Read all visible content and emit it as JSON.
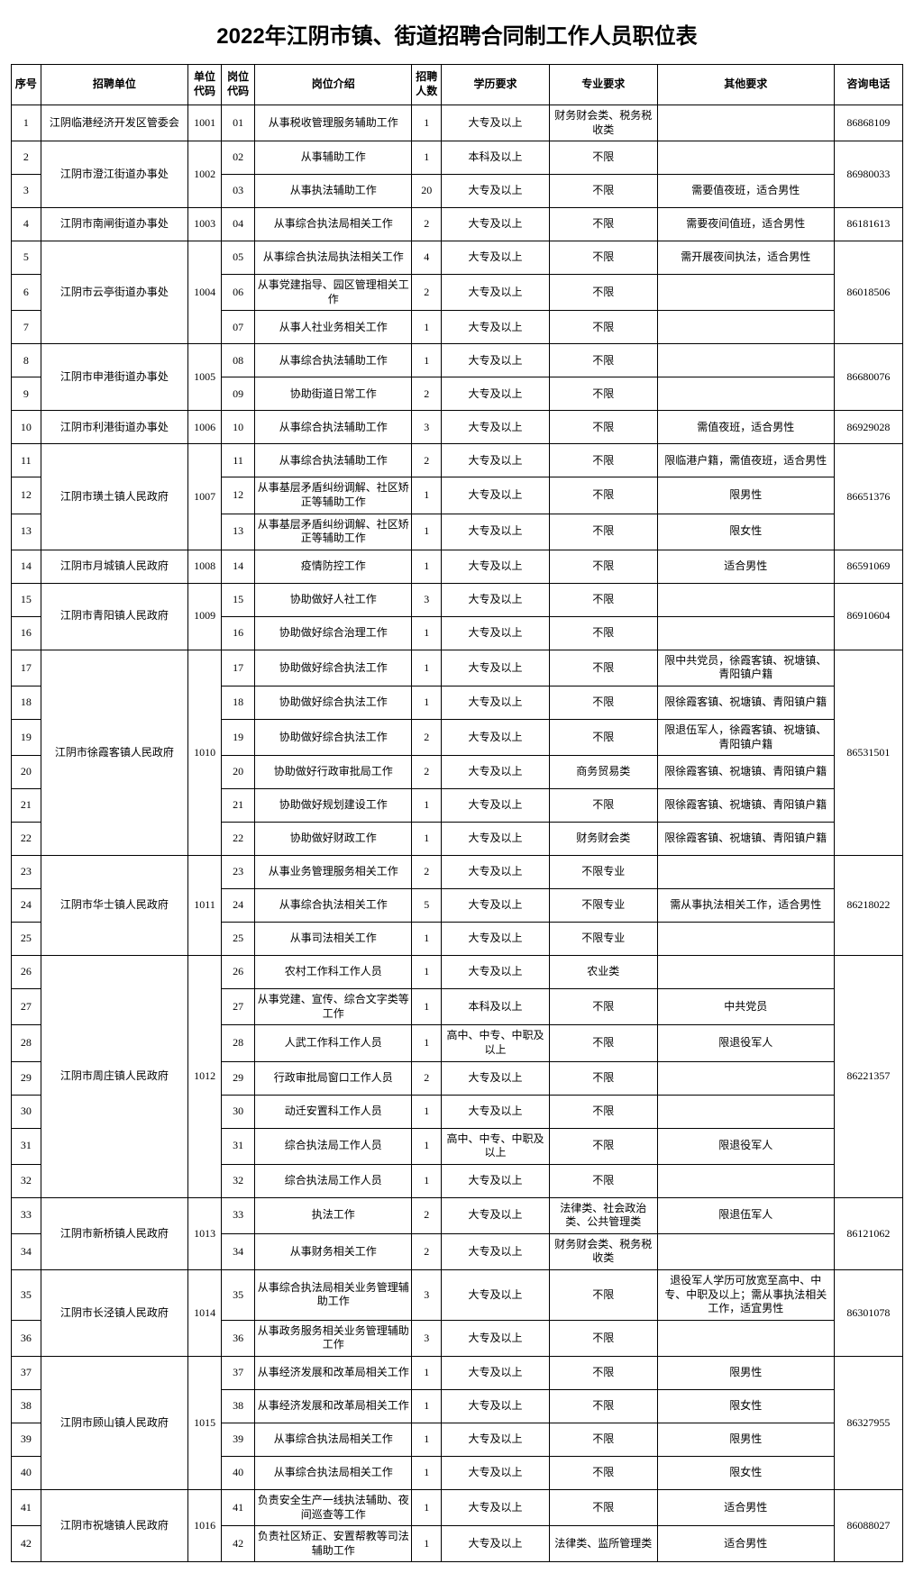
{
  "title": "2022年江阴市镇、街道招聘合同制工作人员职位表",
  "headers": {
    "seq": "序号",
    "unit": "招聘单位",
    "ucode": "单位代码",
    "pcode": "岗位代码",
    "desc": "岗位介绍",
    "num": "招聘人数",
    "edu": "学历要求",
    "major": "专业要求",
    "other": "其他要求",
    "tel": "咨询电话"
  },
  "groups": [
    {
      "unit": "江阴临港经济开发区管委会",
      "ucode": "1001",
      "tel": "86868109",
      "rows": [
        {
          "seq": "1",
          "pcode": "01",
          "desc": "从事税收管理服务辅助工作",
          "num": "1",
          "edu": "大专及以上",
          "major": "财务财会类、税务税收类",
          "other": ""
        }
      ]
    },
    {
      "unit": "江阴市澄江街道办事处",
      "ucode": "1002",
      "tel": "86980033",
      "rows": [
        {
          "seq": "2",
          "pcode": "02",
          "desc": "从事辅助工作",
          "num": "1",
          "edu": "本科及以上",
          "major": "不限",
          "other": ""
        },
        {
          "seq": "3",
          "pcode": "03",
          "desc": "从事执法辅助工作",
          "num": "20",
          "edu": "大专及以上",
          "major": "不限",
          "other": "需要值夜班，适合男性"
        }
      ]
    },
    {
      "unit": "江阴市南闸街道办事处",
      "ucode": "1003",
      "tel": "86181613",
      "rows": [
        {
          "seq": "4",
          "pcode": "04",
          "desc": "从事综合执法局相关工作",
          "num": "2",
          "edu": "大专及以上",
          "major": "不限",
          "other": "需要夜间值班，适合男性"
        }
      ]
    },
    {
      "unit": "江阴市云亭街道办事处",
      "ucode": "1004",
      "tel": "86018506",
      "rows": [
        {
          "seq": "5",
          "pcode": "05",
          "desc": "从事综合执法局执法相关工作",
          "num": "4",
          "edu": "大专及以上",
          "major": "不限",
          "other": "需开展夜间执法，适合男性"
        },
        {
          "seq": "6",
          "pcode": "06",
          "desc": "从事党建指导、园区管理相关工作",
          "num": "2",
          "edu": "大专及以上",
          "major": "不限",
          "other": ""
        },
        {
          "seq": "7",
          "pcode": "07",
          "desc": "从事人社业务相关工作",
          "num": "1",
          "edu": "大专及以上",
          "major": "不限",
          "other": ""
        }
      ]
    },
    {
      "unit": "江阴市申港街道办事处",
      "ucode": "1005",
      "tel": "86680076",
      "rows": [
        {
          "seq": "8",
          "pcode": "08",
          "desc": "从事综合执法辅助工作",
          "num": "1",
          "edu": "大专及以上",
          "major": "不限",
          "other": ""
        },
        {
          "seq": "9",
          "pcode": "09",
          "desc": "协助街道日常工作",
          "num": "2",
          "edu": "大专及以上",
          "major": "不限",
          "other": ""
        }
      ]
    },
    {
      "unit": "江阴市利港街道办事处",
      "ucode": "1006",
      "tel": "86929028",
      "rows": [
        {
          "seq": "10",
          "pcode": "10",
          "desc": "从事综合执法辅助工作",
          "num": "3",
          "edu": "大专及以上",
          "major": "不限",
          "other": "需值夜班，适合男性"
        }
      ]
    },
    {
      "unit": "江阴市璜土镇人民政府",
      "ucode": "1007",
      "tel": "86651376",
      "rows": [
        {
          "seq": "11",
          "pcode": "11",
          "desc": "从事综合执法辅助工作",
          "num": "2",
          "edu": "大专及以上",
          "major": "不限",
          "other": "限临港户籍，需值夜班，适合男性"
        },
        {
          "seq": "12",
          "pcode": "12",
          "desc": "从事基层矛盾纠纷调解、社区矫正等辅助工作",
          "num": "1",
          "edu": "大专及以上",
          "major": "不限",
          "other": "限男性"
        },
        {
          "seq": "13",
          "pcode": "13",
          "desc": "从事基层矛盾纠纷调解、社区矫正等辅助工作",
          "num": "1",
          "edu": "大专及以上",
          "major": "不限",
          "other": "限女性"
        }
      ]
    },
    {
      "unit": "江阴市月城镇人民政府",
      "ucode": "1008",
      "tel": "86591069",
      "rows": [
        {
          "seq": "14",
          "pcode": "14",
          "desc": "疫情防控工作",
          "num": "1",
          "edu": "大专及以上",
          "major": "不限",
          "other": "适合男性"
        }
      ]
    },
    {
      "unit": "江阴市青阳镇人民政府",
      "ucode": "1009",
      "tel": "86910604",
      "rows": [
        {
          "seq": "15",
          "pcode": "15",
          "desc": "协助做好人社工作",
          "num": "3",
          "edu": "大专及以上",
          "major": "不限",
          "other": ""
        },
        {
          "seq": "16",
          "pcode": "16",
          "desc": "协助做好综合治理工作",
          "num": "1",
          "edu": "大专及以上",
          "major": "不限",
          "other": ""
        }
      ]
    },
    {
      "unit": "江阴市徐霞客镇人民政府",
      "ucode": "1010",
      "tel": "86531501",
      "rows": [
        {
          "seq": "17",
          "pcode": "17",
          "desc": "协助做好综合执法工作",
          "num": "1",
          "edu": "大专及以上",
          "major": "不限",
          "other": "限中共党员，徐霞客镇、祝塘镇、青阳镇户籍"
        },
        {
          "seq": "18",
          "pcode": "18",
          "desc": "协助做好综合执法工作",
          "num": "1",
          "edu": "大专及以上",
          "major": "不限",
          "other": "限徐霞客镇、祝塘镇、青阳镇户籍"
        },
        {
          "seq": "19",
          "pcode": "19",
          "desc": "协助做好综合执法工作",
          "num": "2",
          "edu": "大专及以上",
          "major": "不限",
          "other": "限退伍军人，徐霞客镇、祝塘镇、青阳镇户籍"
        },
        {
          "seq": "20",
          "pcode": "20",
          "desc": "协助做好行政审批局工作",
          "num": "2",
          "edu": "大专及以上",
          "major": "商务贸易类",
          "other": "限徐霞客镇、祝塘镇、青阳镇户籍"
        },
        {
          "seq": "21",
          "pcode": "21",
          "desc": "协助做好规划建设工作",
          "num": "1",
          "edu": "大专及以上",
          "major": "不限",
          "other": "限徐霞客镇、祝塘镇、青阳镇户籍"
        },
        {
          "seq": "22",
          "pcode": "22",
          "desc": "协助做好财政工作",
          "num": "1",
          "edu": "大专及以上",
          "major": "财务财会类",
          "other": "限徐霞客镇、祝塘镇、青阳镇户籍"
        }
      ]
    },
    {
      "unit": "江阴市华士镇人民政府",
      "ucode": "1011",
      "tel": "86218022",
      "rows": [
        {
          "seq": "23",
          "pcode": "23",
          "desc": "从事业务管理服务相关工作",
          "num": "2",
          "edu": "大专及以上",
          "major": "不限专业",
          "other": ""
        },
        {
          "seq": "24",
          "pcode": "24",
          "desc": "从事综合执法相关工作",
          "num": "5",
          "edu": "大专及以上",
          "major": "不限专业",
          "other": "需从事执法相关工作，适合男性"
        },
        {
          "seq": "25",
          "pcode": "25",
          "desc": "从事司法相关工作",
          "num": "1",
          "edu": "大专及以上",
          "major": "不限专业",
          "other": ""
        }
      ]
    },
    {
      "unit": "江阴市周庄镇人民政府",
      "ucode": "1012",
      "tel": "86221357",
      "rows": [
        {
          "seq": "26",
          "pcode": "26",
          "desc": "农村工作科工作人员",
          "num": "1",
          "edu": "大专及以上",
          "major": "农业类",
          "other": ""
        },
        {
          "seq": "27",
          "pcode": "27",
          "desc": "从事党建、宣传、综合文字类等工作",
          "num": "1",
          "edu": "本科及以上",
          "major": "不限",
          "other": "中共党员"
        },
        {
          "seq": "28",
          "pcode": "28",
          "desc": "人武工作科工作人员",
          "num": "1",
          "edu": "高中、中专、中职及以上",
          "major": "不限",
          "other": "限退役军人"
        },
        {
          "seq": "29",
          "pcode": "29",
          "desc": "行政审批局窗口工作人员",
          "num": "2",
          "edu": "大专及以上",
          "major": "不限",
          "other": ""
        },
        {
          "seq": "30",
          "pcode": "30",
          "desc": "动迁安置科工作人员",
          "num": "1",
          "edu": "大专及以上",
          "major": "不限",
          "other": ""
        },
        {
          "seq": "31",
          "pcode": "31",
          "desc": "综合执法局工作人员",
          "num": "1",
          "edu": "高中、中专、中职及以上",
          "major": "不限",
          "other": "限退役军人"
        },
        {
          "seq": "32",
          "pcode": "32",
          "desc": "综合执法局工作人员",
          "num": "1",
          "edu": "大专及以上",
          "major": "不限",
          "other": ""
        }
      ]
    },
    {
      "unit": "江阴市新桥镇人民政府",
      "ucode": "1013",
      "tel": "86121062",
      "rows": [
        {
          "seq": "33",
          "pcode": "33",
          "desc": "执法工作",
          "num": "2",
          "edu": "大专及以上",
          "major": "法律类、社会政治类、公共管理类",
          "other": "限退伍军人"
        },
        {
          "seq": "34",
          "pcode": "34",
          "desc": "从事财务相关工作",
          "num": "2",
          "edu": "大专及以上",
          "major": "财务财会类、税务税收类",
          "other": ""
        }
      ]
    },
    {
      "unit": "江阴市长泾镇人民政府",
      "ucode": "1014",
      "tel": "86301078",
      "rows": [
        {
          "seq": "35",
          "pcode": "35",
          "desc": "从事综合执法局相关业务管理辅助工作",
          "num": "3",
          "edu": "大专及以上",
          "major": "不限",
          "other": "退役军人学历可放宽至高中、中专、中职及以上；需从事执法相关工作，适宜男性"
        },
        {
          "seq": "36",
          "pcode": "36",
          "desc": "从事政务服务相关业务管理辅助工作",
          "num": "3",
          "edu": "大专及以上",
          "major": "不限",
          "other": ""
        }
      ]
    },
    {
      "unit": "江阴市顾山镇人民政府",
      "ucode": "1015",
      "tel": "86327955",
      "rows": [
        {
          "seq": "37",
          "pcode": "37",
          "desc": "从事经济发展和改革局相关工作",
          "num": "1",
          "edu": "大专及以上",
          "major": "不限",
          "other": "限男性"
        },
        {
          "seq": "38",
          "pcode": "38",
          "desc": "从事经济发展和改革局相关工作",
          "num": "1",
          "edu": "大专及以上",
          "major": "不限",
          "other": "限女性"
        },
        {
          "seq": "39",
          "pcode": "39",
          "desc": "从事综合执法局相关工作",
          "num": "1",
          "edu": "大专及以上",
          "major": "不限",
          "other": "限男性"
        },
        {
          "seq": "40",
          "pcode": "40",
          "desc": "从事综合执法局相关工作",
          "num": "1",
          "edu": "大专及以上",
          "major": "不限",
          "other": "限女性"
        }
      ]
    },
    {
      "unit": "江阴市祝塘镇人民政府",
      "ucode": "1016",
      "tel": "86088027",
      "rows": [
        {
          "seq": "41",
          "pcode": "41",
          "desc": "负责安全生产一线执法辅助、夜间巡查等工作",
          "num": "1",
          "edu": "大专及以上",
          "major": "不限",
          "other": "适合男性"
        },
        {
          "seq": "42",
          "pcode": "42",
          "desc": "负责社区矫正、安置帮教等司法辅助工作",
          "num": "1",
          "edu": "大专及以上",
          "major": "法律类、监所管理类",
          "other": "适合男性"
        }
      ]
    }
  ]
}
